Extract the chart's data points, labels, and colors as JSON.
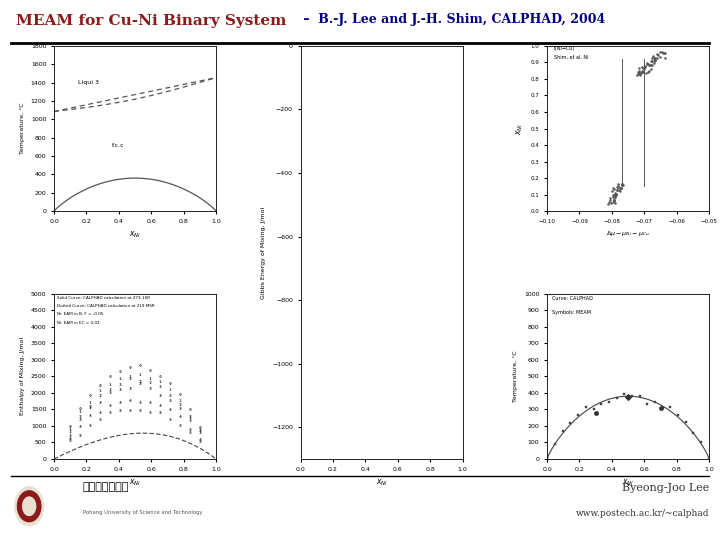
{
  "title_left": "MEAM for Cu-Ni Binary System",
  "title_right": " –  B.-J. Lee and J.-H. Shim, CALPHAD, 2004",
  "title_color_left": "#8B1A1A",
  "title_color_right": "#000080",
  "footer_right_line1": "Byeong-Joo Lee",
  "footer_right_line2": "www.postech.ac.kr/~calphad",
  "bg_color": "#FFFFFF"
}
